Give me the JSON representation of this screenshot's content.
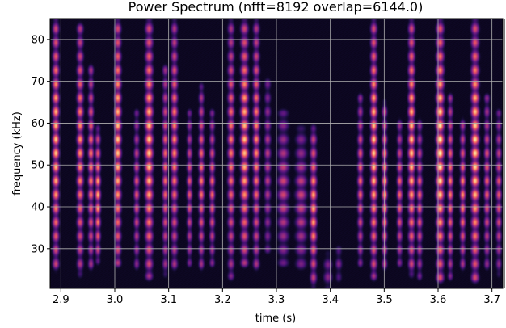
{
  "chart_data": {
    "type": "heatmap",
    "title": "Power Spectrum (nfft=8192 overlap=6144.0)",
    "xlabel": "time (s)",
    "ylabel": "frequency (kHz)",
    "xlim": [
      2.88,
      3.72
    ],
    "ylim": [
      20.5,
      85
    ],
    "x_ticks": [
      2.9,
      3.0,
      3.1,
      3.2,
      3.3,
      3.4,
      3.5,
      3.6,
      3.7
    ],
    "x_tick_labels": [
      "2.9",
      "3.0",
      "3.1",
      "3.2",
      "3.3",
      "3.4",
      "3.5",
      "3.6",
      "3.7"
    ],
    "y_ticks": [
      30,
      40,
      50,
      60,
      70,
      80
    ],
    "y_tick_labels": [
      "30",
      "40",
      "50",
      "60",
      "70",
      "80"
    ],
    "grid": true,
    "colormap": "magma",
    "background_color": "#000004",
    "pulses": [
      {
        "t": 2.89,
        "f_low": 26,
        "f_high": 84,
        "peak": 0.9,
        "width": 0.006
      },
      {
        "t": 2.935,
        "f_low": 25,
        "f_high": 83,
        "peak": 0.8,
        "width": 0.006
      },
      {
        "t": 2.955,
        "f_low": 26,
        "f_high": 73,
        "peak": 0.78,
        "width": 0.005
      },
      {
        "t": 2.968,
        "f_low": 28,
        "f_high": 58,
        "peak": 0.85,
        "width": 0.005
      },
      {
        "t": 3.005,
        "f_low": 27,
        "f_high": 84,
        "peak": 0.92,
        "width": 0.006
      },
      {
        "t": 3.04,
        "f_low": 26,
        "f_high": 62,
        "peak": 0.65,
        "width": 0.005
      },
      {
        "t": 3.063,
        "f_low": 24,
        "f_high": 84,
        "peak": 0.92,
        "width": 0.007
      },
      {
        "t": 3.093,
        "f_low": 25,
        "f_high": 73,
        "peak": 0.72,
        "width": 0.005
      },
      {
        "t": 3.11,
        "f_low": 26,
        "f_high": 84,
        "peak": 0.78,
        "width": 0.006
      },
      {
        "t": 3.138,
        "f_low": 27,
        "f_high": 62,
        "peak": 0.65,
        "width": 0.005
      },
      {
        "t": 3.16,
        "f_low": 26,
        "f_high": 68,
        "peak": 0.75,
        "width": 0.005
      },
      {
        "t": 3.18,
        "f_low": 27,
        "f_high": 62,
        "peak": 0.7,
        "width": 0.005
      },
      {
        "t": 3.215,
        "f_low": 24,
        "f_high": 84,
        "peak": 0.75,
        "width": 0.006
      },
      {
        "t": 3.24,
        "f_low": 27,
        "f_high": 84,
        "peak": 0.9,
        "width": 0.007
      },
      {
        "t": 3.262,
        "f_low": 26,
        "f_high": 84,
        "peak": 0.78,
        "width": 0.006
      },
      {
        "t": 3.283,
        "f_low": 30,
        "f_high": 70,
        "peak": 0.55,
        "width": 0.006
      },
      {
        "t": 3.312,
        "f_low": 27,
        "f_high": 62,
        "peak": 0.58,
        "width": 0.01
      },
      {
        "t": 3.345,
        "f_low": 26,
        "f_high": 58,
        "peak": 0.58,
        "width": 0.01
      },
      {
        "t": 3.368,
        "f_low": 22,
        "f_high": 58,
        "peak": 0.85,
        "width": 0.006
      },
      {
        "t": 3.395,
        "f_low": 21,
        "f_high": 28,
        "peak": 0.45,
        "width": 0.008
      },
      {
        "t": 3.415,
        "f_low": 23,
        "f_high": 30,
        "peak": 0.4,
        "width": 0.006
      },
      {
        "t": 3.455,
        "f_low": 27,
        "f_high": 66,
        "peak": 0.7,
        "width": 0.005
      },
      {
        "t": 3.48,
        "f_low": 24,
        "f_high": 84,
        "peak": 0.92,
        "width": 0.006
      },
      {
        "t": 3.5,
        "f_low": 26,
        "f_high": 64,
        "peak": 0.8,
        "width": 0.005
      },
      {
        "t": 3.528,
        "f_low": 27,
        "f_high": 60,
        "peak": 0.7,
        "width": 0.005
      },
      {
        "t": 3.55,
        "f_low": 25,
        "f_high": 84,
        "peak": 0.92,
        "width": 0.006
      },
      {
        "t": 3.565,
        "f_low": 24,
        "f_high": 60,
        "peak": 0.7,
        "width": 0.005
      },
      {
        "t": 3.603,
        "f_low": 23,
        "f_high": 84,
        "peak": 1.0,
        "width": 0.007
      },
      {
        "t": 3.622,
        "f_low": 24,
        "f_high": 66,
        "peak": 0.75,
        "width": 0.005
      },
      {
        "t": 3.645,
        "f_low": 26,
        "f_high": 60,
        "peak": 0.78,
        "width": 0.005
      },
      {
        "t": 3.668,
        "f_low": 23,
        "f_high": 84,
        "peak": 0.95,
        "width": 0.007
      },
      {
        "t": 3.69,
        "f_low": 26,
        "f_high": 66,
        "peak": 0.7,
        "width": 0.005
      },
      {
        "t": 3.712,
        "f_low": 25,
        "f_high": 62,
        "peak": 0.65,
        "width": 0.005
      }
    ]
  }
}
